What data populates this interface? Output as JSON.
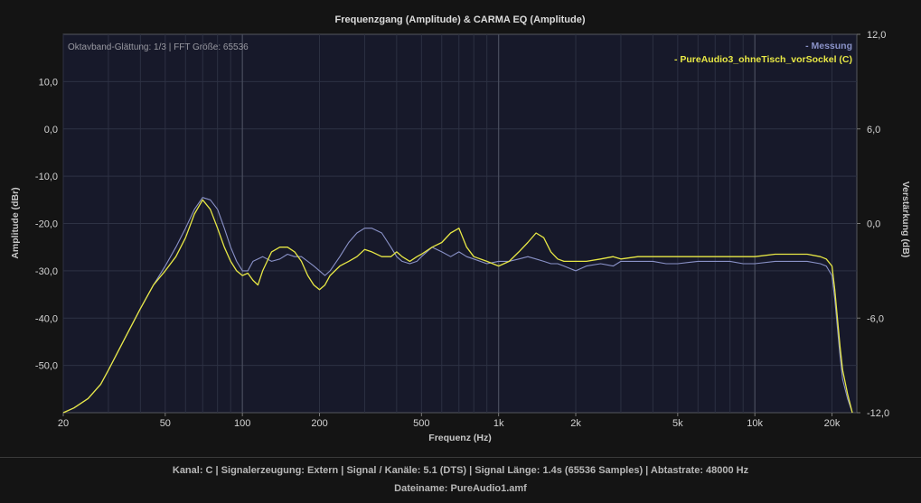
{
  "chart_data": {
    "type": "line",
    "title": "Frequenzgang (Amplitude) & CARMA EQ (Amplitude)",
    "subtitle": "Oktavband-Glättung: 1/3 | FFT Größe: 65536",
    "xlabel": "Frequenz (Hz)",
    "ylabel": "Amplitude (dBr)",
    "y2label": "Verstärkung (dB)",
    "xscale": "log",
    "xlim": [
      20,
      25000
    ],
    "ylim": [
      -60,
      20
    ],
    "y2lim": [
      -12,
      12
    ],
    "grid": true,
    "legend_position": "top-right",
    "x_ticks": [
      "20",
      "50",
      "100",
      "200",
      "500",
      "1k",
      "2k",
      "5k",
      "10k",
      "20k"
    ],
    "y_ticks": [
      "10,0",
      "0,0",
      "-10,0",
      "-20,0",
      "-30,0",
      "-40,0",
      "-50,0"
    ],
    "y2_ticks": [
      "12,0",
      "6,0",
      "0,0",
      "-6,0",
      "-12,0"
    ],
    "series": [
      {
        "name": "- Messung",
        "color": "#8a92c8",
        "x": [
          20,
          22,
          25,
          28,
          30,
          35,
          40,
          45,
          50,
          55,
          60,
          65,
          70,
          75,
          80,
          85,
          90,
          95,
          100,
          105,
          110,
          120,
          130,
          140,
          150,
          160,
          170,
          180,
          190,
          200,
          210,
          220,
          240,
          260,
          280,
          300,
          320,
          350,
          380,
          400,
          420,
          450,
          480,
          500,
          550,
          600,
          650,
          700,
          750,
          800,
          900,
          1000,
          1100,
          1200,
          1300,
          1400,
          1500,
          1600,
          1700,
          1800,
          2000,
          2200,
          2500,
          2800,
          3000,
          3500,
          4000,
          4500,
          5000,
          6000,
          7000,
          8000,
          9000,
          10000,
          12000,
          14000,
          16000,
          18000,
          19000,
          20000,
          20500,
          21000,
          21500,
          22000,
          23000,
          24000
        ],
        "y": [
          -60,
          -59,
          -57,
          -54,
          -51,
          -44,
          -38,
          -33,
          -29,
          -25,
          -21,
          -17,
          -14.5,
          -15,
          -17,
          -21,
          -25,
          -28,
          -30,
          -30,
          -28,
          -27,
          -28,
          -27.5,
          -26.5,
          -27,
          -27,
          -28,
          -29,
          -30,
          -31,
          -30,
          -27,
          -24,
          -22,
          -21,
          -21,
          -22,
          -25,
          -27,
          -28,
          -28.5,
          -28,
          -27,
          -25,
          -26,
          -27,
          -26,
          -27,
          -27.5,
          -28.5,
          -28,
          -28,
          -27.5,
          -27,
          -27.5,
          -28,
          -28.5,
          -28.5,
          -29,
          -30,
          -29,
          -28.5,
          -29,
          -28,
          -28,
          -28,
          -28.5,
          -28.5,
          -28,
          -28,
          -28,
          -28.5,
          -28.5,
          -28,
          -28,
          -28,
          -28.5,
          -29,
          -31,
          -36,
          -42,
          -48,
          -53,
          -57,
          -60
        ]
      },
      {
        "name": "- PureAudio3_ohneTisch_vorSockel (C)",
        "color": "#e8e845",
        "x": [
          20,
          22,
          25,
          28,
          30,
          35,
          40,
          45,
          50,
          55,
          60,
          65,
          70,
          75,
          80,
          85,
          90,
          95,
          100,
          105,
          110,
          115,
          120,
          130,
          140,
          150,
          160,
          170,
          180,
          190,
          200,
          210,
          220,
          240,
          260,
          280,
          300,
          320,
          350,
          380,
          400,
          420,
          450,
          480,
          500,
          550,
          600,
          650,
          700,
          750,
          800,
          900,
          1000,
          1100,
          1200,
          1300,
          1400,
          1500,
          1600,
          1700,
          1800,
          2000,
          2200,
          2500,
          2800,
          3000,
          3500,
          4000,
          4500,
          5000,
          6000,
          7000,
          8000,
          9000,
          10000,
          12000,
          14000,
          16000,
          18000,
          19000,
          20000,
          20500,
          21000,
          21500,
          22000,
          23000,
          24000
        ],
        "y": [
          -60,
          -59,
          -57,
          -54,
          -51,
          -44,
          -38,
          -33,
          -30,
          -27,
          -23,
          -18,
          -15,
          -17,
          -21,
          -25,
          -28,
          -30,
          -31,
          -30.5,
          -32,
          -33,
          -30,
          -26,
          -25,
          -25,
          -26,
          -28,
          -31,
          -33,
          -34,
          -33,
          -31,
          -29,
          -28,
          -27,
          -25.5,
          -26,
          -27,
          -27,
          -26,
          -27,
          -28,
          -27,
          -26.5,
          -25,
          -24,
          -22,
          -21,
          -25,
          -27,
          -28,
          -29,
          -28,
          -26,
          -24,
          -22,
          -23,
          -26,
          -27.5,
          -28,
          -28,
          -28,
          -27.5,
          -27,
          -27.5,
          -27,
          -27,
          -27,
          -27,
          -27,
          -27,
          -27,
          -27,
          -27,
          -26.5,
          -26.5,
          -26.5,
          -27,
          -27.5,
          -29,
          -34,
          -40,
          -46,
          -51,
          -56,
          -60
        ]
      }
    ]
  },
  "footer": {
    "line1": "Kanal: C  |  Signalerzeugung: Extern   |  Signal / Kanäle: 5.1 (DTS)  |  Signal Länge: 1.4s (65536 Samples)  |  Abtastrate: 48000 Hz",
    "line2": "Dateiname: PureAudio1.amf"
  }
}
